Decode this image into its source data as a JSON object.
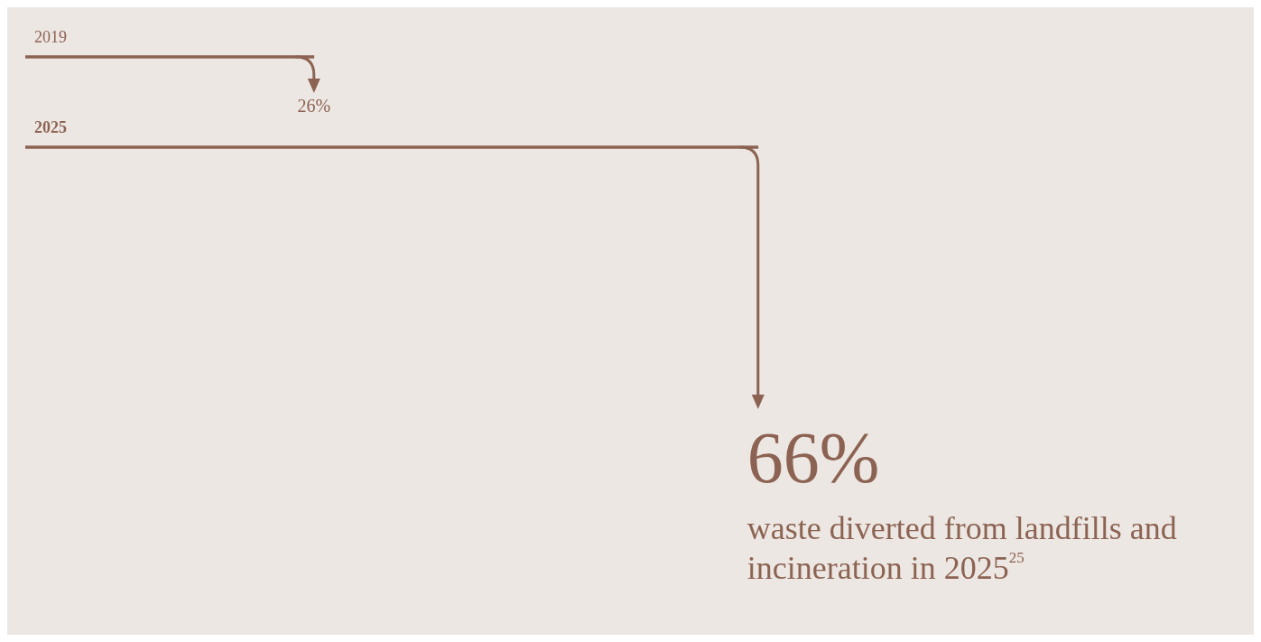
{
  "chart_data": {
    "type": "bar",
    "orientation": "horizontal",
    "categories": [
      "2019",
      "2025"
    ],
    "values": [
      26,
      66
    ],
    "color": "#8c6352",
    "value_labels": [
      "26%",
      "66%"
    ],
    "annotations": [
      "waste diverted from landfills and incineration in 2025$^{25}$"
    ]
  }
}
